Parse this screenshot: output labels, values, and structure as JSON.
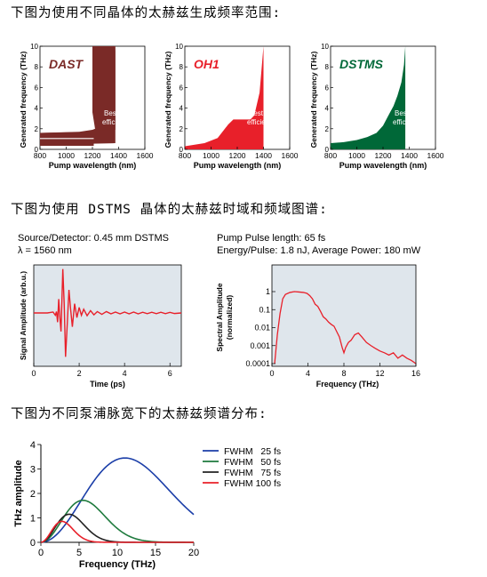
{
  "headings": {
    "h1": "下图为使用不同晶体的太赫兹生成频率范围:",
    "h2": "下图为使用 DSTMS 晶体的太赫兹时域和频域图谱:",
    "h3": "下图为不同泵浦脉宽下的太赫兹频谱分布:"
  },
  "captions": {
    "left_line1": "Source/Detector: 0.45 mm DSTMS",
    "left_line2": "λ = 1560 nm",
    "right_line1": "Pump Pulse length: 65 fs",
    "right_line2": "Energy/Pulse: 1.8 nJ, Average Power: 180 mW"
  },
  "colors": {
    "dast": "#7a2a27",
    "oh1": "#e8202a",
    "dstms": "#006838",
    "panel_bg": "#dfe6ec",
    "trace": "#e8202a"
  },
  "chart_data": [
    {
      "type": "area",
      "crystal": "DAST",
      "title": "DAST",
      "annotation": "Best efficiency",
      "xlabel": "Pump wavelength (nm)",
      "ylabel": "Generated frequency (THz)",
      "xlim": [
        800,
        1600
      ],
      "ylim": [
        0,
        10
      ],
      "xticks": [
        "800",
        "1000",
        "1200",
        "1400",
        "1600"
      ],
      "yticks": [
        "0",
        "2",
        "4",
        "6",
        "8",
        "10"
      ],
      "upper": [
        [
          800,
          1.6
        ],
        [
          1100,
          1.7
        ],
        [
          1200,
          1.9
        ],
        [
          1300,
          2.4
        ],
        [
          1350,
          4.3
        ],
        [
          1360,
          6.5
        ],
        [
          1375,
          10
        ]
      ],
      "lower": [
        [
          800,
          0.35
        ],
        [
          1000,
          0.35
        ],
        [
          1200,
          0.55
        ],
        [
          1375,
          0.6
        ]
      ],
      "lobe_upper": [
        [
          1200,
          10
        ],
        [
          1200,
          3.6
        ],
        [
          1220,
          2.0
        ],
        [
          1300,
          1.8
        ],
        [
          1375,
          1.9
        ]
      ],
      "lobe_lower": [
        [
          800,
          0.9
        ],
        [
          1200,
          0.85
        ]
      ]
    },
    {
      "type": "area",
      "crystal": "OH1",
      "title": "OH1",
      "annotation": "Best efficiency",
      "xlabel": "Pump wavelength (nm)",
      "ylabel": "Generated frequency (THz)",
      "xlim": [
        800,
        1600
      ],
      "ylim": [
        0,
        10
      ],
      "xticks": [
        "800",
        "1000",
        "1200",
        "1400",
        "1600"
      ],
      "yticks": [
        "0",
        "2",
        "4",
        "6",
        "8",
        "10"
      ],
      "upper": [
        [
          800,
          0.3
        ],
        [
          950,
          0.6
        ],
        [
          1050,
          1.1
        ],
        [
          1130,
          2.4
        ],
        [
          1170,
          2.9
        ],
        [
          1300,
          2.9
        ],
        [
          1330,
          3.3
        ],
        [
          1370,
          5.5
        ],
        [
          1400,
          10
        ]
      ],
      "lower": [
        [
          800,
          0
        ],
        [
          1400,
          0
        ]
      ]
    },
    {
      "type": "area",
      "crystal": "DSTMS",
      "title": "DSTMS",
      "annotation": "Best efficiency",
      "xlabel": "Pump wavelength (nm)",
      "ylabel": "Generated frequency (THz)",
      "xlim": [
        800,
        1600
      ],
      "ylim": [
        0,
        10
      ],
      "xticks": [
        "800",
        "1000",
        "1200",
        "1400",
        "1600"
      ],
      "yticks": [
        "0",
        "2",
        "4",
        "6",
        "8",
        "10"
      ],
      "upper": [
        [
          800,
          0.6
        ],
        [
          900,
          0.7
        ],
        [
          1000,
          0.9
        ],
        [
          1080,
          1.2
        ],
        [
          1150,
          1.6
        ],
        [
          1200,
          2.3
        ],
        [
          1250,
          3.5
        ],
        [
          1280,
          4.2
        ],
        [
          1310,
          5.2
        ],
        [
          1340,
          6.5
        ],
        [
          1360,
          8.2
        ],
        [
          1370,
          10
        ]
      ],
      "lower": [
        [
          800,
          0
        ],
        [
          1370,
          0
        ]
      ]
    },
    {
      "type": "line",
      "name": "time-domain",
      "xlabel": "Time (ps)",
      "ylabel": "Signal Amplitude (arb.u.)",
      "xlim": [
        0,
        6.5
      ],
      "ylim": [
        -1,
        1
      ],
      "xticks": [
        "0",
        "2",
        "4",
        "6"
      ],
      "points": [
        [
          0,
          0
        ],
        [
          0.6,
          0
        ],
        [
          0.85,
          0.02
        ],
        [
          0.95,
          -0.05
        ],
        [
          1.0,
          0.03
        ],
        [
          1.05,
          -0.2
        ],
        [
          1.1,
          0.3
        ],
        [
          1.15,
          -0.1
        ],
        [
          1.2,
          -0.4
        ],
        [
          1.28,
          0.95
        ],
        [
          1.34,
          0.2
        ],
        [
          1.4,
          -0.95
        ],
        [
          1.48,
          -0.2
        ],
        [
          1.55,
          0.5
        ],
        [
          1.62,
          0.1
        ],
        [
          1.7,
          -0.3
        ],
        [
          1.8,
          0.2
        ],
        [
          1.9,
          -0.1
        ],
        [
          2.0,
          0.12
        ],
        [
          2.1,
          -0.05
        ],
        [
          2.2,
          0.08
        ],
        [
          2.35,
          -0.06
        ],
        [
          2.5,
          0.05
        ],
        [
          2.65,
          -0.04
        ],
        [
          2.8,
          0.03
        ],
        [
          3.0,
          -0.03
        ],
        [
          3.2,
          0.03
        ],
        [
          3.4,
          -0.02
        ],
        [
          3.6,
          0.02
        ],
        [
          3.8,
          -0.02
        ],
        [
          4.0,
          0.02
        ],
        [
          4.2,
          -0.02
        ],
        [
          4.4,
          0.02
        ],
        [
          4.6,
          -0.02
        ],
        [
          4.8,
          0.015
        ],
        [
          5.0,
          -0.015
        ],
        [
          5.2,
          0.015
        ],
        [
          5.4,
          -0.015
        ],
        [
          5.6,
          0.015
        ],
        [
          5.8,
          -0.015
        ],
        [
          6.0,
          0.012
        ],
        [
          6.2,
          -0.012
        ],
        [
          6.5,
          0.0
        ]
      ]
    },
    {
      "type": "line",
      "name": "spectrum",
      "xlabel": "Frequency (THz)",
      "ylabel": "Spectral Amplitude (normalized)",
      "xlim": [
        0,
        16
      ],
      "ylim": [
        0.0001,
        1
      ],
      "yscale": "log",
      "xticks": [
        "0",
        "4",
        "8",
        "12",
        "16"
      ],
      "yticks": [
        "0.0001",
        "0.001",
        "0.01",
        "0.1",
        "1"
      ],
      "points": [
        [
          0.3,
          0.0001
        ],
        [
          0.6,
          0.004
        ],
        [
          0.9,
          0.06
        ],
        [
          1.2,
          0.4
        ],
        [
          1.5,
          0.7
        ],
        [
          2.0,
          0.9
        ],
        [
          2.5,
          1.0
        ],
        [
          3.0,
          0.95
        ],
        [
          3.5,
          0.9
        ],
        [
          3.9,
          0.8
        ],
        [
          4.2,
          0.6
        ],
        [
          4.5,
          0.4
        ],
        [
          4.8,
          0.2
        ],
        [
          5.1,
          0.15
        ],
        [
          5.4,
          0.08
        ],
        [
          5.7,
          0.04
        ],
        [
          6.0,
          0.03
        ],
        [
          6.3,
          0.02
        ],
        [
          6.6,
          0.015
        ],
        [
          6.9,
          0.012
        ],
        [
          7.2,
          0.006
        ],
        [
          7.5,
          0.003
        ],
        [
          7.8,
          0.0008
        ],
        [
          8.0,
          0.0004
        ],
        [
          8.2,
          0.0008
        ],
        [
          8.5,
          0.0015
        ],
        [
          8.8,
          0.002
        ],
        [
          9.2,
          0.004
        ],
        [
          9.6,
          0.005
        ],
        [
          10.0,
          0.003
        ],
        [
          10.5,
          0.0015
        ],
        [
          11.0,
          0.001
        ],
        [
          11.5,
          0.0007
        ],
        [
          12.0,
          0.0005
        ],
        [
          12.5,
          0.0004
        ],
        [
          13.0,
          0.0003
        ],
        [
          13.5,
          0.0004
        ],
        [
          14.0,
          0.0002
        ],
        [
          14.5,
          0.0003
        ],
        [
          15.0,
          0.0002
        ],
        [
          15.5,
          0.00015
        ],
        [
          16.0,
          0.0001
        ]
      ]
    },
    {
      "type": "line",
      "name": "pulse-width",
      "xlabel": "Frequency (THz)",
      "ylabel": "THz amplitude",
      "xlim": [
        0,
        20
      ],
      "ylim": [
        0,
        4
      ],
      "xticks": [
        "0",
        "5",
        "10",
        "15",
        "20"
      ],
      "yticks": [
        "0",
        "1",
        "2",
        "3",
        "4"
      ],
      "series": [
        {
          "name": "FWHM   25 fs",
          "color": "#1b3ea8",
          "peak_x": 11,
          "peak_y": 3.45
        },
        {
          "name": "FWHM   50 fs",
          "color": "#1e7a3d",
          "peak_x": 5.5,
          "peak_y": 1.72
        },
        {
          "name": "FWHM   75 fs",
          "color": "#222222",
          "peak_x": 3.7,
          "peak_y": 1.15
        },
        {
          "name": "FWHM 100 fs",
          "color": "#e8202a",
          "peak_x": 2.75,
          "peak_y": 0.86
        }
      ]
    }
  ]
}
